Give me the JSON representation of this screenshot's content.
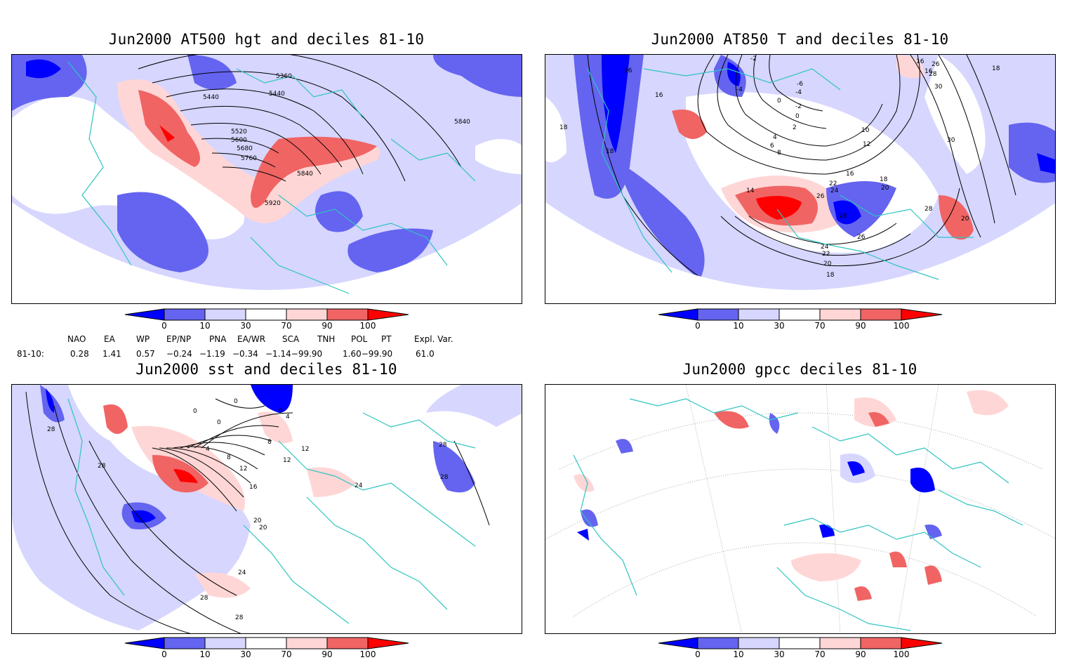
{
  "panels": [
    {
      "id": "p1",
      "title": "Jun2000 AT500 hgt and deciles 81-10",
      "contour_labels": [
        "5360",
        "5440",
        "5440",
        "5520",
        "5600",
        "5680",
        "5760",
        "5840",
        "5920",
        "5840"
      ]
    },
    {
      "id": "p2",
      "title": "Jun2000 AT850 T and deciles 81-10",
      "contour_labels": [
        "-2",
        "-4",
        "-6",
        "-4",
        "0",
        "-2",
        "2",
        "0",
        "4",
        "6",
        "8",
        "10",
        "12",
        "14",
        "16",
        "18",
        "16",
        "16",
        "18",
        "20",
        "22",
        "24",
        "26",
        "28",
        "26",
        "24",
        "22",
        "20",
        "18",
        "18",
        "16",
        "26",
        "28",
        "30",
        "30",
        "28",
        "16",
        "18",
        "20"
      ]
    },
    {
      "id": "p3",
      "title": "Jun2000 sst and deciles 81-10",
      "contour_labels": [
        "28",
        "28",
        "0",
        "0",
        "0",
        "0",
        "4",
        "4",
        "8",
        "8",
        "12",
        "12",
        "12",
        "16",
        "20",
        "20",
        "24",
        "24",
        "28",
        "28",
        "28",
        "28"
      ]
    },
    {
      "id": "p4",
      "title": "Jun2000 gpcc deciles 81-10",
      "contour_labels": []
    }
  ],
  "colorbar": {
    "tick_labels": [
      "0",
      "10",
      "30",
      "70",
      "90",
      "100"
    ],
    "colors": [
      "#0000ff",
      "#6464f0",
      "#d6d6ff",
      "#ffffff",
      "#ffd6d6",
      "#f06464",
      "#ff0000"
    ]
  },
  "indices": {
    "headers": [
      "NAO",
      "EA",
      "WP",
      "EP/NP",
      "PNA",
      "EA/WR",
      "SCA",
      "TNH",
      "POL",
      "PT",
      "Expl. Var."
    ],
    "row_label": "81-10:",
    "values": [
      "0.28",
      "1.41",
      "0.57",
      "−0.24",
      "−1.19",
      "−0.34",
      "−1.14−99.90",
      "1.60−99.90",
      "61.0"
    ]
  },
  "map_colors": {
    "land_outline": "#2ec4c0",
    "grid": "#9a9a9a",
    "contour": "#000000"
  }
}
